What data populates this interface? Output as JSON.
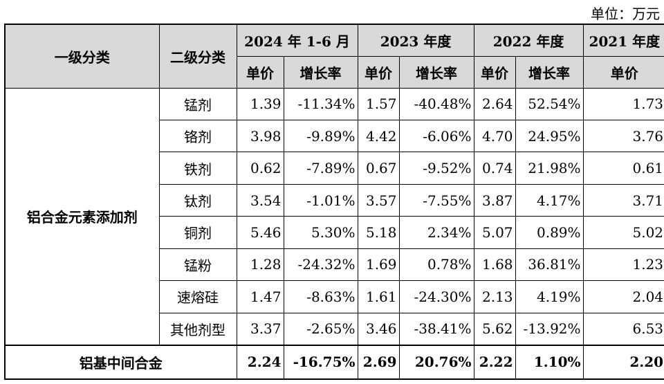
{
  "unit_label": "单位：万元",
  "headers": {
    "level1": "一级分类",
    "level2": "二级分类",
    "years": [
      "2024 年 1-6 月",
      "2023 年度",
      "2022 年度",
      "2021 年度"
    ],
    "unit_price": "单价",
    "growth_rate": "增长率"
  },
  "category": "铝合金元素添加剂",
  "rows": [
    {
      "name": "锰剂",
      "v2024": "1.39",
      "g2024": "-11.34%",
      "v2023": "1.57",
      "g2023": "-40.48%",
      "v2022": "2.64",
      "g2022": "52.54%",
      "v2021": "1.73"
    },
    {
      "name": "铬剂",
      "v2024": "3.98",
      "g2024": "-9.89%",
      "v2023": "4.42",
      "g2023": "-6.06%",
      "v2022": "4.70",
      "g2022": "24.95%",
      "v2021": "3.76"
    },
    {
      "name": "铁剂",
      "v2024": "0.62",
      "g2024": "-7.89%",
      "v2023": "0.67",
      "g2023": "-9.52%",
      "v2022": "0.74",
      "g2022": "21.98%",
      "v2021": "0.61"
    },
    {
      "name": "钛剂",
      "v2024": "3.54",
      "g2024": "-1.01%",
      "v2023": "3.57",
      "g2023": "-7.55%",
      "v2022": "3.87",
      "g2022": "4.17%",
      "v2021": "3.71"
    },
    {
      "name": "铜剂",
      "v2024": "5.46",
      "g2024": "5.30%",
      "v2023": "5.18",
      "g2023": "2.34%",
      "v2022": "5.07",
      "g2022": "0.89%",
      "v2021": "5.02"
    },
    {
      "name": "锰粉",
      "v2024": "1.28",
      "g2024": "-24.32%",
      "v2023": "1.69",
      "g2023": "0.78%",
      "v2022": "1.68",
      "g2022": "36.81%",
      "v2021": "1.23"
    },
    {
      "name": "速熔硅",
      "v2024": "1.47",
      "g2024": "-8.63%",
      "v2023": "1.61",
      "g2023": "-24.30%",
      "v2022": "2.13",
      "g2022": "4.19%",
      "v2021": "2.04"
    },
    {
      "name": "其他剂型",
      "v2024": "3.37",
      "g2024": "-2.65%",
      "v2023": "3.46",
      "g2023": "-38.41%",
      "v2022": "5.62",
      "g2022": "-13.92%",
      "v2021": "6.53"
    }
  ],
  "total": {
    "name": "铝基中间合金",
    "v2024": "2.24",
    "g2024": "-16.75%",
    "v2023": "2.69",
    "g2023": "20.76%",
    "v2022": "2.22",
    "g2022": "1.10%",
    "v2021": "2.20"
  }
}
